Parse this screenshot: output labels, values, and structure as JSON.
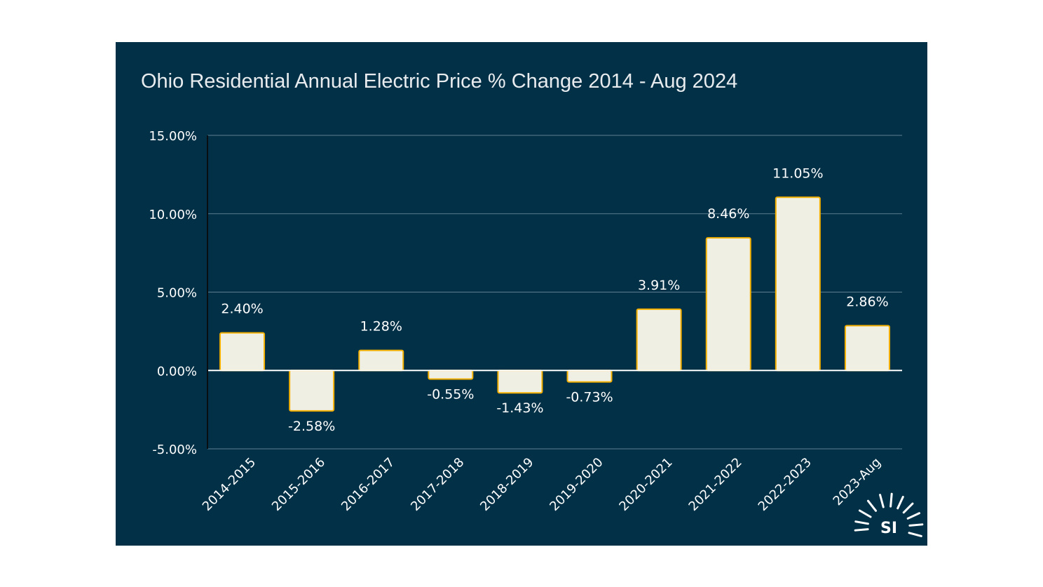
{
  "chart_data": {
    "type": "bar",
    "title": "Ohio Residential Annual Electric Price % Change 2014 - Aug 2024",
    "categories": [
      "2014-2015",
      "2015-2016",
      "2016-2017",
      "2017-2018",
      "2018-2019",
      "2019-2020",
      "2020-2021",
      "2021-2022",
      "2022-2023",
      "2023-Aug"
    ],
    "values": [
      2.4,
      -2.58,
      1.28,
      -0.55,
      -1.43,
      -0.73,
      3.91,
      8.46,
      11.05,
      2.86
    ],
    "value_labels": [
      "2.40%",
      "-2.58%",
      "1.28%",
      "-0.55%",
      "-1.43%",
      "-0.73%",
      "3.91%",
      "8.46%",
      "11.05%",
      "2.86%"
    ],
    "yticks": [
      15,
      10,
      5,
      0,
      -5
    ],
    "ytick_labels": [
      "15.00%",
      "10.00%",
      "5.00%",
      "0.00%",
      "-5.00%"
    ],
    "ylim": [
      -5,
      15
    ],
    "xlabel": "",
    "ylabel": "",
    "grid": true,
    "colors": {
      "background": "#023047",
      "bar_fill": "#f0efe4",
      "bar_stroke": "#f4b000",
      "grid": "#5d7e8f",
      "text": "#ffffff"
    }
  },
  "logo": {
    "text": "SI",
    "icon": "sunburst-icon"
  }
}
